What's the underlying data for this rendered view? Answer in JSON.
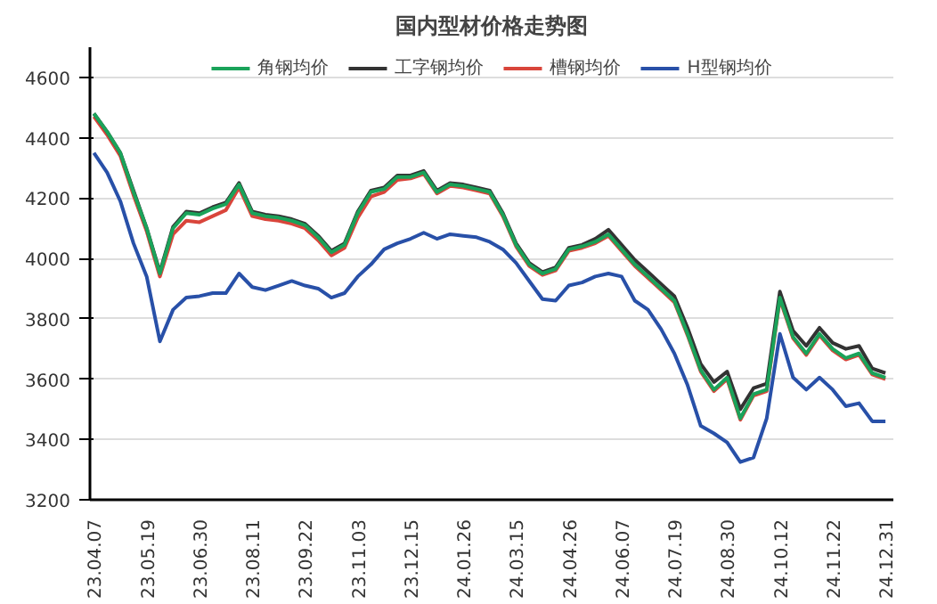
{
  "chart_data": {
    "type": "line",
    "title": "国内型材价格走势图",
    "categories": [
      "23.04.07",
      null,
      null,
      null,
      "23.05.19",
      null,
      null,
      null,
      "23.06.30",
      null,
      null,
      null,
      "23.08.11",
      null,
      null,
      null,
      "23.09.22",
      null,
      null,
      null,
      "23.11.03",
      null,
      null,
      null,
      "23.12.15",
      null,
      null,
      null,
      "24.01.26",
      null,
      null,
      null,
      "24.03.15",
      null,
      null,
      null,
      "24.04.26",
      null,
      null,
      null,
      "24.06.07",
      null,
      null,
      null,
      "24.07.19",
      null,
      null,
      null,
      "24.08.30",
      null,
      null,
      null,
      "24.10.12",
      null,
      null,
      null,
      "24.11.22",
      null,
      null,
      null,
      "24.12.31"
    ],
    "series": [
      {
        "name": "角钢均价",
        "color": "#1aa35a",
        "values": [
          4480,
          4420,
          4350,
          4220,
          4100,
          3950,
          4100,
          4150,
          4145,
          4165,
          4180,
          4245,
          4150,
          4140,
          4135,
          4125,
          4110,
          4070,
          4020,
          4045,
          4150,
          4220,
          4230,
          4270,
          4270,
          4285,
          4220,
          4245,
          4240,
          4230,
          4220,
          4145,
          4045,
          3980,
          3950,
          3965,
          4030,
          4040,
          4055,
          4080,
          4030,
          3980,
          3940,
          3900,
          3860,
          3750,
          3630,
          3565,
          3605,
          3470,
          3550,
          3565,
          3870,
          3740,
          3685,
          3750,
          3700,
          3670,
          3685,
          3620,
          3605
        ]
      },
      {
        "name": "工字钢均价",
        "color": "#333333",
        "values": [
          4480,
          4420,
          4350,
          4225,
          4100,
          3955,
          4105,
          4155,
          4150,
          4170,
          4185,
          4250,
          4155,
          4145,
          4140,
          4130,
          4115,
          4075,
          4025,
          4050,
          4155,
          4225,
          4235,
          4275,
          4275,
          4290,
          4225,
          4250,
          4245,
          4235,
          4225,
          4150,
          4050,
          3985,
          3955,
          3970,
          4035,
          4045,
          4065,
          4095,
          4045,
          3995,
          3955,
          3915,
          3875,
          3770,
          3650,
          3590,
          3625,
          3500,
          3570,
          3585,
          3890,
          3760,
          3710,
          3770,
          3720,
          3700,
          3710,
          3635,
          3620
        ]
      },
      {
        "name": "槽钢均价",
        "color": "#d9453b",
        "values": [
          4470,
          4410,
          4340,
          4210,
          4090,
          3940,
          4080,
          4125,
          4120,
          4140,
          4160,
          4235,
          4140,
          4130,
          4125,
          4115,
          4100,
          4060,
          4010,
          4035,
          4135,
          4205,
          4220,
          4260,
          4265,
          4280,
          4215,
          4240,
          4235,
          4225,
          4215,
          4140,
          4040,
          3975,
          3945,
          3960,
          4025,
          4035,
          4050,
          4075,
          4025,
          3975,
          3935,
          3895,
          3855,
          3745,
          3625,
          3560,
          3600,
          3465,
          3545,
          3560,
          3865,
          3735,
          3680,
          3745,
          3695,
          3665,
          3680,
          3615,
          3600
        ]
      },
      {
        "name": "H型钢均价",
        "color": "#2850a8",
        "values": [
          4350,
          4285,
          4190,
          4050,
          3940,
          3725,
          3830,
          3870,
          3875,
          3885,
          3885,
          3950,
          3905,
          3895,
          3910,
          3925,
          3910,
          3900,
          3870,
          3885,
          3940,
          3980,
          4030,
          4050,
          4065,
          4085,
          4065,
          4080,
          4075,
          4070,
          4055,
          4030,
          3985,
          3925,
          3865,
          3860,
          3910,
          3920,
          3940,
          3950,
          3940,
          3860,
          3830,
          3765,
          3685,
          3580,
          3445,
          3420,
          3390,
          3325,
          3340,
          3470,
          3750,
          3605,
          3565,
          3605,
          3565,
          3510,
          3520,
          3460,
          3460
        ]
      }
    ],
    "ylim": [
      3200,
      4700
    ],
    "yticks": [
      3200,
      3400,
      3600,
      3800,
      4000,
      4200,
      4400,
      4600
    ],
    "grid": "y",
    "legend": "top",
    "marker": "none",
    "line_style": "solid"
  }
}
